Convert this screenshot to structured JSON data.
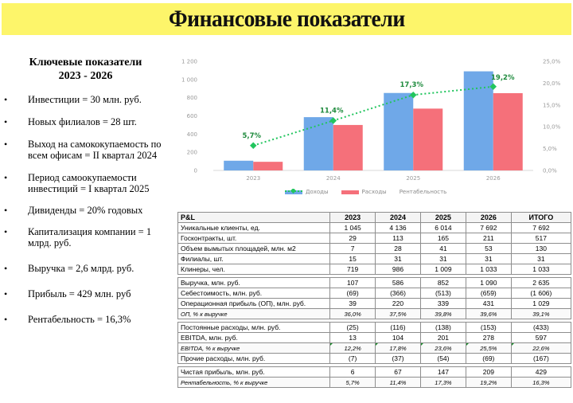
{
  "header": {
    "title": "Финансовые показатели"
  },
  "left_panel": {
    "heading_line1": "Ключевые показатели",
    "heading_line2": "2023 - 2026",
    "bullet_glyph": "•",
    "items": [
      "Инвестиции = 30 млн. руб.",
      "Новых филиалов = 28 шт.",
      "Выход на самококупаемость по всем офисам = II квартал 2024",
      "Период самоокупаемости инвестиций = I квартал 2025",
      "Дивиденды = 20% годовых",
      "Капитализация компании = 1 млрд. руб.",
      "Выручка = 2,6 млрд. руб.",
      "Прибыль = 429 млн. руб",
      "Рентабельность = 16,3%"
    ]
  },
  "colors": {
    "title_bg": "#fdf56a",
    "income": "#6fa8e8",
    "expenses": "#f5707a",
    "profitability": "#22c55e",
    "profitability_label": "#1d8a3c"
  },
  "chart_data": {
    "type": "bar",
    "title": "",
    "categories": [
      "2023",
      "2024",
      "2025",
      "2026"
    ],
    "series": [
      {
        "name": "Доходы",
        "type": "bar",
        "axis": "left",
        "values": [
          107,
          586,
          852,
          1090
        ]
      },
      {
        "name": "Расходы",
        "type": "bar",
        "axis": "left",
        "values": [
          95,
          500,
          680,
          850
        ]
      },
      {
        "name": "Рентабельность",
        "type": "line",
        "axis": "right",
        "values": [
          5.7,
          11.4,
          17.3,
          19.2
        ],
        "labels": [
          "5,7%",
          "11,4%",
          "17,3%",
          "19,2%"
        ]
      }
    ],
    "y_left": {
      "ticks": [
        "0",
        "200",
        "400",
        "600",
        "800",
        "1 000",
        "1 200"
      ],
      "range": [
        0,
        1200
      ]
    },
    "y_right": {
      "ticks": [
        "0,0%",
        "5,0%",
        "10,0%",
        "15,0%",
        "20,0%",
        "25,0%"
      ],
      "range": [
        0,
        25
      ]
    },
    "xlabel": "",
    "ylabel": "",
    "grid": false,
    "legend_position": "bottom"
  },
  "chart": {
    "legend": {
      "income": "Доходы",
      "expenses": "Расходы",
      "profitability": "Рентабельность"
    },
    "y_left_ticks": [
      "1 200",
      "1 000",
      "800",
      "600",
      "400",
      "200",
      "0"
    ],
    "y_right_ticks": [
      "25,0%",
      "20,0%",
      "15,0%",
      "10,0%",
      "5,0%",
      "0,0%"
    ],
    "x_ticks": [
      "2023",
      "2024",
      "2025",
      "2026"
    ],
    "pct_labels": [
      "5,7%",
      "11,4%",
      "17,3%",
      "19,2%"
    ]
  },
  "table": {
    "headers": [
      "P&L",
      "2023",
      "2024",
      "2025",
      "2026",
      "ИТОГО"
    ],
    "block1": [
      [
        "Уникальные клиенты, ед.",
        "1 045",
        "4 136",
        "6 014",
        "7 692",
        "7 692"
      ],
      [
        "Госконтракты, шт.",
        "29",
        "113",
        "165",
        "211",
        "517"
      ],
      [
        "Объем вымытых площадей, млн. м2",
        "7",
        "28",
        "41",
        "53",
        "130"
      ],
      [
        "Филиалы, шт.",
        "15",
        "31",
        "31",
        "31",
        "31"
      ],
      [
        "Клинеры, чел.",
        "719",
        "986",
        "1 009",
        "1 033",
        "1 033"
      ]
    ],
    "block2": [
      [
        "Выручка, млн. руб.",
        "107",
        "586",
        "852",
        "1 090",
        "2 635"
      ],
      [
        "Себестоимость, млн. руб.",
        "(69)",
        "(366)",
        "(513)",
        "(659)",
        "(1 606)"
      ],
      [
        "Операционная прибыль (ОП), млн. руб.",
        "39",
        "220",
        "339",
        "431",
        "1 029"
      ],
      [
        "ОП, % к выручке",
        "36,0%",
        "37,5%",
        "39,8%",
        "39,6%",
        "39,1%"
      ]
    ],
    "block3": [
      [
        "Постоянные расходы, млн. руб.",
        "(25)",
        "(116)",
        "(138)",
        "(153)",
        "(433)"
      ],
      [
        "EBITDA, млн. руб.",
        "13",
        "104",
        "201",
        "278",
        "597"
      ],
      [
        "EBITDA, % к выручке",
        "12,2%",
        "17,8%",
        "23,6%",
        "25,5%",
        "22,6%"
      ],
      [
        "Прочие расходы, млн. руб.",
        "(7)",
        "(37)",
        "(54)",
        "(69)",
        "(167)"
      ]
    ],
    "block4": [
      [
        "Чистая прибыль, млн. руб.",
        "6",
        "67",
        "147",
        "209",
        "429"
      ],
      [
        "Рентабельность, % к выручке",
        "5,7%",
        "11,4%",
        "17,3%",
        "19,2%",
        "16,3%"
      ]
    ]
  }
}
